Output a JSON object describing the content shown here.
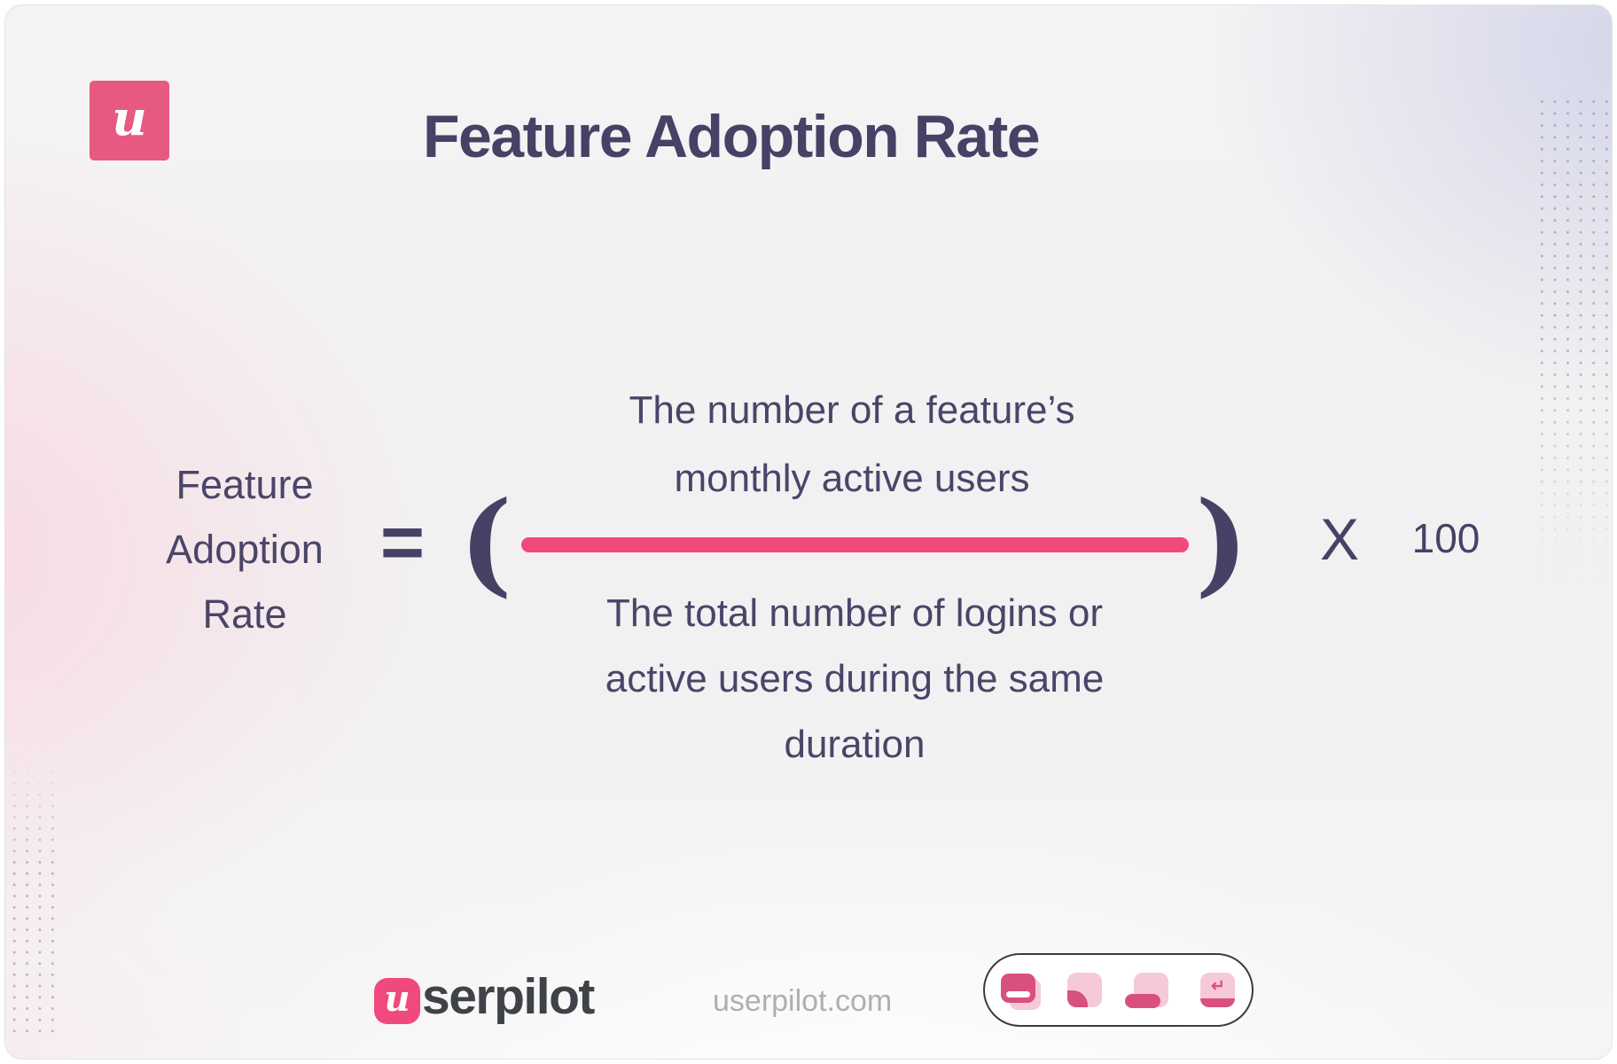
{
  "header": {
    "logo_letter": "u",
    "title": "Feature Adoption Rate"
  },
  "formula": {
    "label_lines": [
      "Feature",
      "Adoption",
      "Rate"
    ],
    "equals": "=",
    "open_paren": "(",
    "close_paren": ")",
    "numerator_lines": [
      "The number of a feature’s",
      "monthly active users"
    ],
    "denominator_lines": [
      "The total number of logins or",
      "active users during the same",
      "duration"
    ],
    "multiply_symbol": "X",
    "multiplier": "100"
  },
  "footer": {
    "brand_badge_letter": "u",
    "brand_rest": "serpilot",
    "website": "userpilot.com",
    "enter_glyph": "↵",
    "icons": [
      "modal-icon",
      "tooltip-icon",
      "banner-icon",
      "enter-icon"
    ]
  },
  "colors": {
    "accent_pink": "#f0497b",
    "logo_pink": "#e65a82",
    "navy_text": "#474166",
    "icon_light_pink": "#f6c9da",
    "icon_dark_pink": "#d8517e",
    "background": "#f2f0f1"
  }
}
